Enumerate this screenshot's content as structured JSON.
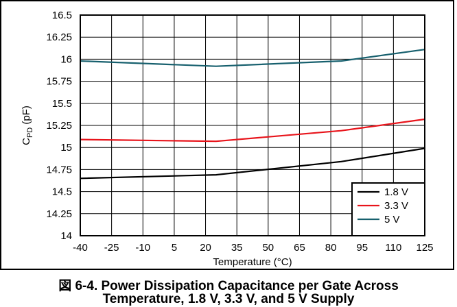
{
  "chart_data": {
    "type": "line",
    "title": "",
    "xlabel": "Temperature (°C)",
    "ylabel": {
      "main": "C",
      "sub": "PD",
      "unit": " (pF)"
    },
    "x_ticks": [
      "-40",
      "-25",
      "-10",
      "5",
      "20",
      "35",
      "50",
      "65",
      "80",
      "95",
      "110",
      "125"
    ],
    "y_ticks": [
      "16.5",
      "16.25",
      "16",
      "15.75",
      "15.5",
      "15.25",
      "15",
      "14.75",
      "14.5",
      "14.25",
      "14"
    ],
    "xlim": [
      -40,
      125
    ],
    "ylim": [
      14,
      16.5
    ],
    "grid": true,
    "legend_position": "bottom-right",
    "series": [
      {
        "name": "1.8 V",
        "color": "#000000",
        "x": [
          -40,
          25,
          85,
          125
        ],
        "y": [
          14.65,
          14.69,
          14.84,
          14.99
        ]
      },
      {
        "name": "3.3 V",
        "color": "#e8141b",
        "x": [
          -40,
          25,
          85,
          125
        ],
        "y": [
          15.09,
          15.07,
          15.19,
          15.32
        ]
      },
      {
        "name": "5 V",
        "color": "#17606e",
        "x": [
          -40,
          25,
          85,
          125
        ],
        "y": [
          15.98,
          15.92,
          15.98,
          16.11
        ]
      }
    ]
  },
  "caption": {
    "line1": "図 6-4. Power Dissipation Capacitance per Gate Across",
    "line2": "Temperature, 1.8 V, 3.3 V, and 5 V Supply"
  }
}
